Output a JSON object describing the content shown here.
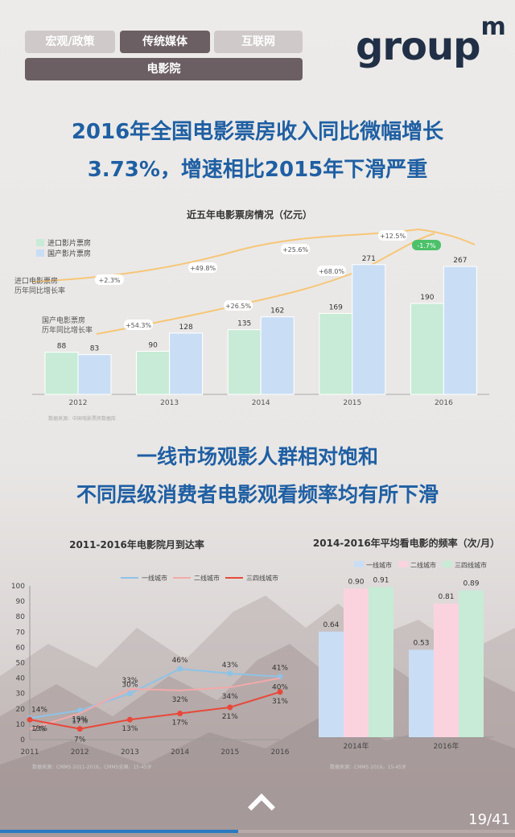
{
  "tabs": [
    {
      "label": "宏观/政策",
      "active": false
    },
    {
      "label": "传统媒体",
      "active": true
    },
    {
      "label": "互联网",
      "active": false
    },
    {
      "label": "电影院",
      "active": true
    }
  ],
  "logo": {
    "text": "group",
    "sup": "m"
  },
  "headline1": {
    "line1": "2016年全国电影票房收入同比微幅增长",
    "line2": "3.73%，增速相比2015年下滑严重"
  },
  "headline2": {
    "line1": "一线市场观影人群相对饱和",
    "line2": "不同层级消费者电影观看频率均有所下滑"
  },
  "nav": {
    "page": "19/41",
    "progress": 0.463
  },
  "colors": {
    "green": "#c7ebd6",
    "blue": "#c9def5",
    "pink": "#fbd3df",
    "lineBlue": "#8ec3e6",
    "linePink": "#f3a9a9",
    "lineRed": "#e8483a",
    "growth": "#f6c678"
  },
  "chart_data": [
    {
      "type": "bar",
      "title": "近五年电影票房情况（亿元）",
      "categories": [
        "2012",
        "2013",
        "2014",
        "2015",
        "2016"
      ],
      "series": [
        {
          "name": "进口影片票房",
          "values": [
            88,
            90,
            135,
            169,
            190
          ]
        },
        {
          "name": "国产影片票房",
          "values": [
            83,
            128,
            162,
            271,
            267
          ]
        }
      ],
      "growth_lines": [
        {
          "name": "进口电影票房历年同比增长率",
          "labels": [
            "+2.3%",
            "+49.8%",
            "+25.6%",
            "+12.5%"
          ],
          "highlight": "-1.7%"
        },
        {
          "name": "国产电影票房历年同比增长率",
          "labels": [
            "+54.3%",
            "+26.5%",
            "+68.0%"
          ]
        }
      ],
      "source": "数据来源：中国电影票房数据库",
      "legend": "top-left"
    },
    {
      "type": "line",
      "title": "2011-2016年电影院月到达率",
      "x": [
        "2011",
        "2012",
        "2013",
        "2014",
        "2015",
        "2016"
      ],
      "series": [
        {
          "name": "一线城市",
          "values": [
            14,
            19,
            30,
            46,
            43,
            41
          ]
        },
        {
          "name": "二线城市",
          "values": [
            7,
            17,
            33,
            32,
            34,
            40
          ]
        },
        {
          "name": "三四线城市",
          "values": [
            13,
            7,
            13,
            17,
            21,
            31
          ]
        }
      ],
      "yticks": [
        "0",
        "10",
        "20",
        "30",
        "40",
        "50",
        "60",
        "70",
        "80",
        "90",
        "100"
      ],
      "ylim": [
        0,
        100
      ],
      "source": "数据来源：CMMS 2011-2016，CMMS全国，15-45岁",
      "legend": "top"
    },
    {
      "type": "bar",
      "title": "2014-2016年平均看电影的频率（次/月）",
      "categories": [
        "2014年",
        "2016年"
      ],
      "series": [
        {
          "name": "一线城市",
          "values": [
            0.64,
            0.53
          ]
        },
        {
          "name": "二线城市",
          "values": [
            0.9,
            0.81
          ]
        },
        {
          "name": "三四线城市",
          "values": [
            0.91,
            0.89
          ]
        }
      ],
      "value_labels": [
        [
          "0.64",
          "0.90",
          "0.91"
        ],
        [
          "0.53",
          "0.81",
          "0.89"
        ]
      ],
      "ylim": [
        0,
        1
      ],
      "source": "数据来源：CMMS 2016，15-45岁",
      "legend": "top"
    }
  ]
}
